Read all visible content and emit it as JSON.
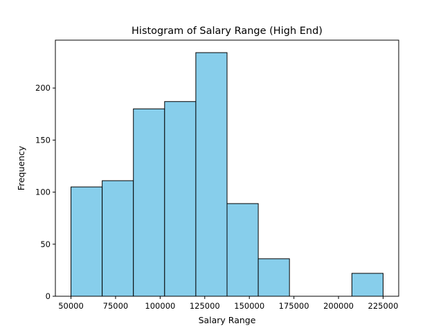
{
  "chart_data": {
    "type": "bar",
    "title": "Histogram of Salary Range (High End)",
    "xlabel": "Salary Range",
    "ylabel": "Frequency",
    "xlim": [
      41250,
      233750
    ],
    "ylim": [
      0,
      246
    ],
    "xticks": [
      50000,
      75000,
      100000,
      125000,
      150000,
      175000,
      200000,
      225000
    ],
    "xtick_labels": [
      "50000",
      "75000",
      "100000",
      "125000",
      "150000",
      "175000",
      "200000",
      "225000"
    ],
    "yticks": [
      0,
      50,
      100,
      150,
      200
    ],
    "ytick_labels": [
      "0",
      "50",
      "100",
      "150",
      "200"
    ],
    "bin_edges": [
      50000,
      67500,
      85000,
      102500,
      120000,
      137500,
      155000,
      172500,
      190000,
      207500,
      225000
    ],
    "values": [
      105,
      111,
      180,
      187,
      234,
      89,
      36,
      0,
      0,
      22
    ],
    "colors": {
      "bar_fill": "#87ceeb",
      "bar_edge": "#000000"
    },
    "grid": false,
    "legend": false
  }
}
